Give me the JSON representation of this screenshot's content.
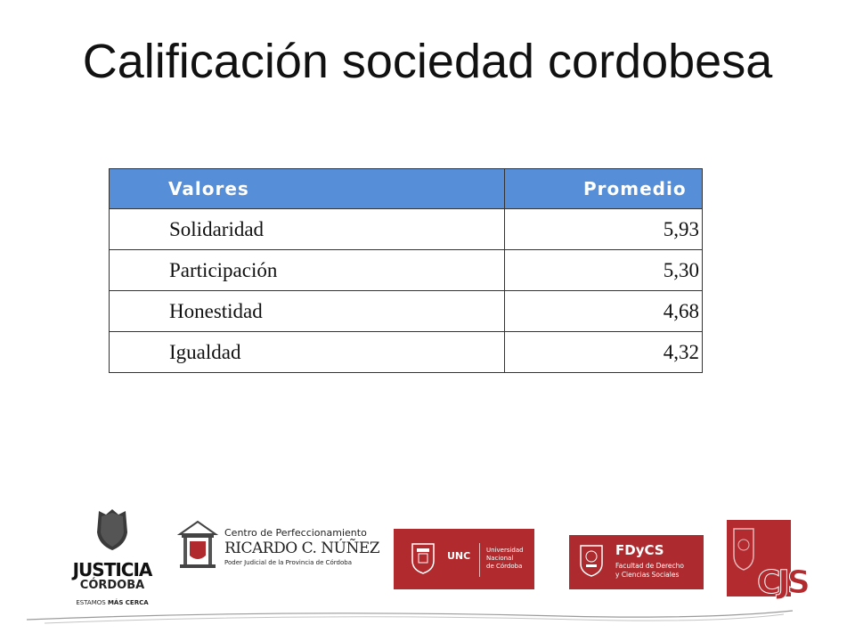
{
  "slide": {
    "title": "Calificación sociedad cordobesa"
  },
  "table": {
    "headers": [
      "Valores",
      "Promedio"
    ],
    "rows": [
      {
        "label": "Solidaridad",
        "value": "5,93"
      },
      {
        "label": "Participación",
        "value": "5,30"
      },
      {
        "label": "Honestidad",
        "value": "4,68"
      },
      {
        "label": "Igualdad",
        "value": "4,32"
      }
    ],
    "header_color": "#568fd8"
  },
  "logos": {
    "justicia": {
      "line1": "JUSTICIA",
      "line2": "CÓRDOBA",
      "tagline_a": "ESTAMOS",
      "tagline_b": "MÁS CERCA"
    },
    "centro": {
      "line1": "Centro de Perfeccionamiento",
      "line2": "RICARDO C. NÚÑEZ",
      "line3": "Poder Judicial de la Provincia de Córdoba"
    },
    "unc": {
      "abbr": "UNC",
      "name1": "Universidad",
      "name2": "Nacional",
      "name3": "de Córdoba"
    },
    "fdycs": {
      "abbr": "FDyCS",
      "name1": "Facultad de Derecho",
      "name2": "y Ciencias Sociales"
    },
    "cjs": {
      "abbr": "CJS"
    },
    "brand_red": "#b02a2e"
  }
}
